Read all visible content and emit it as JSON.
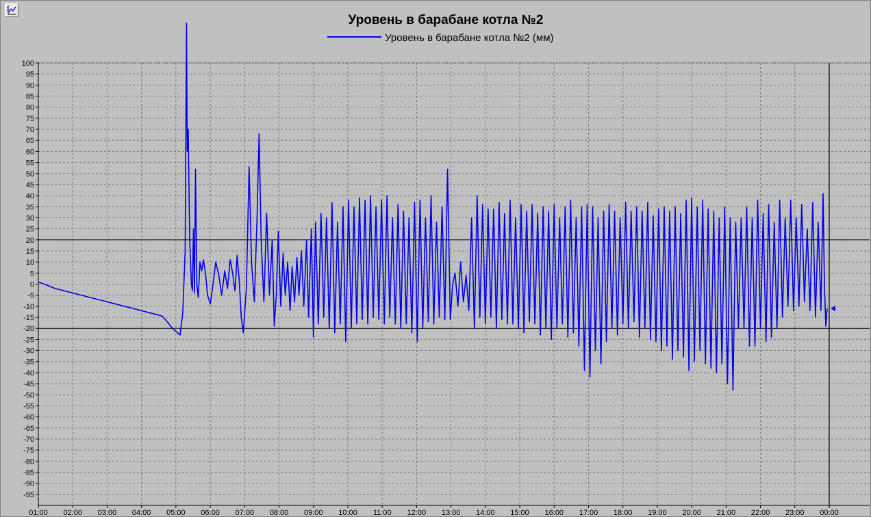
{
  "chart_data": {
    "type": "line",
    "title": "Уровень в барабане котла №2",
    "xlabel": "",
    "ylabel": "",
    "ylim": [
      -100,
      100
    ],
    "y_ticks": [
      -95,
      -90,
      -85,
      -80,
      -75,
      -70,
      -65,
      -60,
      -55,
      -50,
      -45,
      -40,
      -35,
      -30,
      -25,
      -20,
      -15,
      -10,
      -5,
      0,
      5,
      10,
      15,
      20,
      25,
      30,
      35,
      40,
      45,
      50,
      55,
      60,
      65,
      70,
      75,
      80,
      85,
      90,
      95,
      100
    ],
    "xlim": [
      1,
      24
    ],
    "x_tick_labels": [
      "01:00",
      "02:00",
      "03:00",
      "04:00",
      "05:00",
      "06:00",
      "07:00",
      "08:00",
      "09:00",
      "10:00",
      "11:00",
      "12:00",
      "13:00",
      "14:00",
      "15:00",
      "16:00",
      "17:00",
      "18:00",
      "19:00",
      "20:00",
      "21:00",
      "22:00",
      "23:00",
      "00:00"
    ],
    "grid": true,
    "legend_position": "top-center",
    "limit_lines": [
      20,
      -20
    ],
    "cursor_x": 24,
    "cursor_value": -11,
    "series": [
      {
        "name": "Уровень в барабане котла №2 (мм)",
        "color": "#0000ee",
        "points": [
          [
            1.0,
            1
          ],
          [
            1.5,
            -2
          ],
          [
            2.0,
            -4
          ],
          [
            2.5,
            -6
          ],
          [
            3.0,
            -8
          ],
          [
            3.5,
            -10
          ],
          [
            4.0,
            -12
          ],
          [
            4.5,
            -14
          ],
          [
            4.6,
            -14.5
          ],
          [
            4.75,
            -17
          ],
          [
            4.9,
            -20
          ],
          [
            5.05,
            -22
          ],
          [
            5.12,
            -23
          ],
          [
            5.2,
            -13
          ],
          [
            5.27,
            15
          ],
          [
            5.31,
            118
          ],
          [
            5.33,
            60
          ],
          [
            5.36,
            70
          ],
          [
            5.4,
            20
          ],
          [
            5.45,
            0
          ],
          [
            5.48,
            -3
          ],
          [
            5.51,
            25
          ],
          [
            5.54,
            -4
          ],
          [
            5.57,
            52
          ],
          [
            5.61,
            0
          ],
          [
            5.65,
            -6
          ],
          [
            5.7,
            10
          ],
          [
            5.75,
            6
          ],
          [
            5.8,
            11
          ],
          [
            5.86,
            5
          ],
          [
            5.92,
            -5
          ],
          [
            6.0,
            -9
          ],
          [
            6.08,
            0
          ],
          [
            6.16,
            10
          ],
          [
            6.25,
            4
          ],
          [
            6.33,
            -5
          ],
          [
            6.42,
            6
          ],
          [
            6.5,
            -2
          ],
          [
            6.58,
            11
          ],
          [
            6.65,
            5
          ],
          [
            6.72,
            -3
          ],
          [
            6.78,
            13
          ],
          [
            6.84,
            2
          ],
          [
            6.9,
            -15
          ],
          [
            6.96,
            -22
          ],
          [
            7.05,
            -2
          ],
          [
            7.13,
            53
          ],
          [
            7.2,
            10
          ],
          [
            7.28,
            -8
          ],
          [
            7.36,
            30
          ],
          [
            7.42,
            68
          ],
          [
            7.48,
            20
          ],
          [
            7.56,
            -8
          ],
          [
            7.64,
            32
          ],
          [
            7.72,
            -5
          ],
          [
            7.8,
            20
          ],
          [
            7.86,
            -19
          ],
          [
            7.92,
            -5
          ],
          [
            7.98,
            24
          ],
          [
            8.05,
            -10
          ],
          [
            8.12,
            14
          ],
          [
            8.18,
            -5
          ],
          [
            8.25,
            10
          ],
          [
            8.32,
            -12
          ],
          [
            8.38,
            8
          ],
          [
            8.45,
            -8
          ],
          [
            8.52,
            12
          ],
          [
            8.58,
            -5
          ],
          [
            8.65,
            15
          ],
          [
            8.72,
            -10
          ],
          [
            8.8,
            20
          ],
          [
            8.86,
            -15
          ],
          [
            8.94,
            25
          ],
          [
            9.0,
            -24
          ],
          [
            9.06,
            28
          ],
          [
            9.14,
            -18
          ],
          [
            9.22,
            32
          ],
          [
            9.3,
            -15
          ],
          [
            9.38,
            30
          ],
          [
            9.46,
            -20
          ],
          [
            9.54,
            37
          ],
          [
            9.62,
            -22
          ],
          [
            9.7,
            28
          ],
          [
            9.78,
            -18
          ],
          [
            9.86,
            35
          ],
          [
            9.94,
            -26
          ],
          [
            10.02,
            38
          ],
          [
            10.1,
            -20
          ],
          [
            10.18,
            35
          ],
          [
            10.26,
            -18
          ],
          [
            10.34,
            39
          ],
          [
            10.42,
            -16
          ],
          [
            10.5,
            38
          ],
          [
            10.58,
            -18
          ],
          [
            10.66,
            40
          ],
          [
            10.74,
            -15
          ],
          [
            10.82,
            35
          ],
          [
            10.9,
            -16
          ],
          [
            10.98,
            38
          ],
          [
            11.06,
            -18
          ],
          [
            11.14,
            40
          ],
          [
            11.22,
            -15
          ],
          [
            11.3,
            30
          ],
          [
            11.38,
            -18
          ],
          [
            11.46,
            36
          ],
          [
            11.54,
            -20
          ],
          [
            11.62,
            33
          ],
          [
            11.7,
            -18
          ],
          [
            11.78,
            30
          ],
          [
            11.86,
            -22
          ],
          [
            11.94,
            37
          ],
          [
            12.02,
            -26
          ],
          [
            12.1,
            38
          ],
          [
            12.18,
            -20
          ],
          [
            12.26,
            30
          ],
          [
            12.34,
            -17
          ],
          [
            12.42,
            40
          ],
          [
            12.5,
            -18
          ],
          [
            12.58,
            28
          ],
          [
            12.66,
            -15
          ],
          [
            12.74,
            35
          ],
          [
            12.82,
            -16
          ],
          [
            12.9,
            52
          ],
          [
            12.98,
            -16
          ],
          [
            13.05,
            0
          ],
          [
            13.12,
            5
          ],
          [
            13.2,
            -10
          ],
          [
            13.28,
            10
          ],
          [
            13.36,
            -8
          ],
          [
            13.44,
            4
          ],
          [
            13.52,
            -12
          ],
          [
            13.6,
            30
          ],
          [
            13.68,
            -20
          ],
          [
            13.76,
            40
          ],
          [
            13.84,
            -15
          ],
          [
            13.92,
            36
          ],
          [
            14.0,
            -18
          ],
          [
            14.08,
            34
          ],
          [
            14.16,
            -15
          ],
          [
            14.24,
            34
          ],
          [
            14.32,
            -20
          ],
          [
            14.4,
            37
          ],
          [
            14.48,
            -16
          ],
          [
            14.56,
            32
          ],
          [
            14.64,
            -18
          ],
          [
            14.72,
            38
          ],
          [
            14.8,
            -18
          ],
          [
            14.88,
            30
          ],
          [
            14.96,
            -20
          ],
          [
            15.04,
            36
          ],
          [
            15.12,
            -22
          ],
          [
            15.2,
            33
          ],
          [
            15.28,
            -17
          ],
          [
            15.36,
            36
          ],
          [
            15.44,
            -18
          ],
          [
            15.52,
            32
          ],
          [
            15.6,
            -23
          ],
          [
            15.68,
            35
          ],
          [
            15.76,
            -20
          ],
          [
            15.84,
            33
          ],
          [
            15.92,
            -25
          ],
          [
            16.0,
            36
          ],
          [
            16.08,
            -20
          ],
          [
            16.16,
            30
          ],
          [
            16.24,
            -18
          ],
          [
            16.32,
            35
          ],
          [
            16.4,
            -24
          ],
          [
            16.48,
            38
          ],
          [
            16.56,
            -22
          ],
          [
            16.64,
            30
          ],
          [
            16.72,
            -28
          ],
          [
            16.8,
            35
          ],
          [
            16.88,
            -39
          ],
          [
            16.96,
            36
          ],
          [
            17.04,
            -42
          ],
          [
            17.12,
            35
          ],
          [
            17.2,
            -30
          ],
          [
            17.28,
            30
          ],
          [
            17.36,
            -36
          ],
          [
            17.44,
            33
          ],
          [
            17.52,
            -26
          ],
          [
            17.6,
            36
          ],
          [
            17.68,
            -20
          ],
          [
            17.76,
            33
          ],
          [
            17.84,
            -23
          ],
          [
            17.92,
            30
          ],
          [
            18.0,
            -18
          ],
          [
            18.08,
            37
          ],
          [
            18.16,
            -20
          ],
          [
            18.24,
            33
          ],
          [
            18.32,
            -17
          ],
          [
            18.4,
            35
          ],
          [
            18.48,
            -24
          ],
          [
            18.56,
            33
          ],
          [
            18.64,
            -20
          ],
          [
            18.72,
            37
          ],
          [
            18.8,
            -25
          ],
          [
            18.88,
            31
          ],
          [
            18.96,
            -26
          ],
          [
            19.04,
            34
          ],
          [
            19.12,
            -30
          ],
          [
            19.2,
            35
          ],
          [
            19.28,
            -28
          ],
          [
            19.36,
            33
          ],
          [
            19.44,
            -34
          ],
          [
            19.52,
            35
          ],
          [
            19.6,
            -30
          ],
          [
            19.68,
            32
          ],
          [
            19.76,
            -33
          ],
          [
            19.84,
            38
          ],
          [
            19.92,
            -39
          ],
          [
            20.0,
            39
          ],
          [
            20.08,
            -35
          ],
          [
            20.16,
            35
          ],
          [
            20.24,
            -30
          ],
          [
            20.32,
            38
          ],
          [
            20.4,
            -36
          ],
          [
            20.48,
            34
          ],
          [
            20.56,
            -38
          ],
          [
            20.64,
            33
          ],
          [
            20.72,
            -40
          ],
          [
            20.8,
            30
          ],
          [
            20.88,
            -36
          ],
          [
            20.96,
            35
          ],
          [
            21.04,
            -45
          ],
          [
            21.12,
            30
          ],
          [
            21.2,
            -48
          ],
          [
            21.28,
            28
          ],
          [
            21.36,
            -20
          ],
          [
            21.44,
            30
          ],
          [
            21.52,
            -20
          ],
          [
            21.6,
            35
          ],
          [
            21.68,
            -28
          ],
          [
            21.76,
            30
          ],
          [
            21.84,
            -28
          ],
          [
            21.92,
            38
          ],
          [
            22.0,
            -20
          ],
          [
            22.08,
            32
          ],
          [
            22.16,
            -26
          ],
          [
            22.24,
            36
          ],
          [
            22.32,
            -24
          ],
          [
            22.4,
            28
          ],
          [
            22.48,
            -20
          ],
          [
            22.56,
            38
          ],
          [
            22.64,
            -15
          ],
          [
            22.72,
            30
          ],
          [
            22.8,
            -10
          ],
          [
            22.88,
            38
          ],
          [
            22.96,
            -12
          ],
          [
            23.04,
            30
          ],
          [
            23.12,
            -10
          ],
          [
            23.2,
            36
          ],
          [
            23.28,
            -8
          ],
          [
            23.36,
            25
          ],
          [
            23.44,
            -12
          ],
          [
            23.52,
            37
          ],
          [
            23.6,
            -15
          ],
          [
            23.68,
            28
          ],
          [
            23.76,
            -12
          ],
          [
            23.82,
            41
          ],
          [
            23.86,
            0
          ],
          [
            23.9,
            -19
          ],
          [
            23.94,
            -11
          ]
        ]
      }
    ]
  }
}
